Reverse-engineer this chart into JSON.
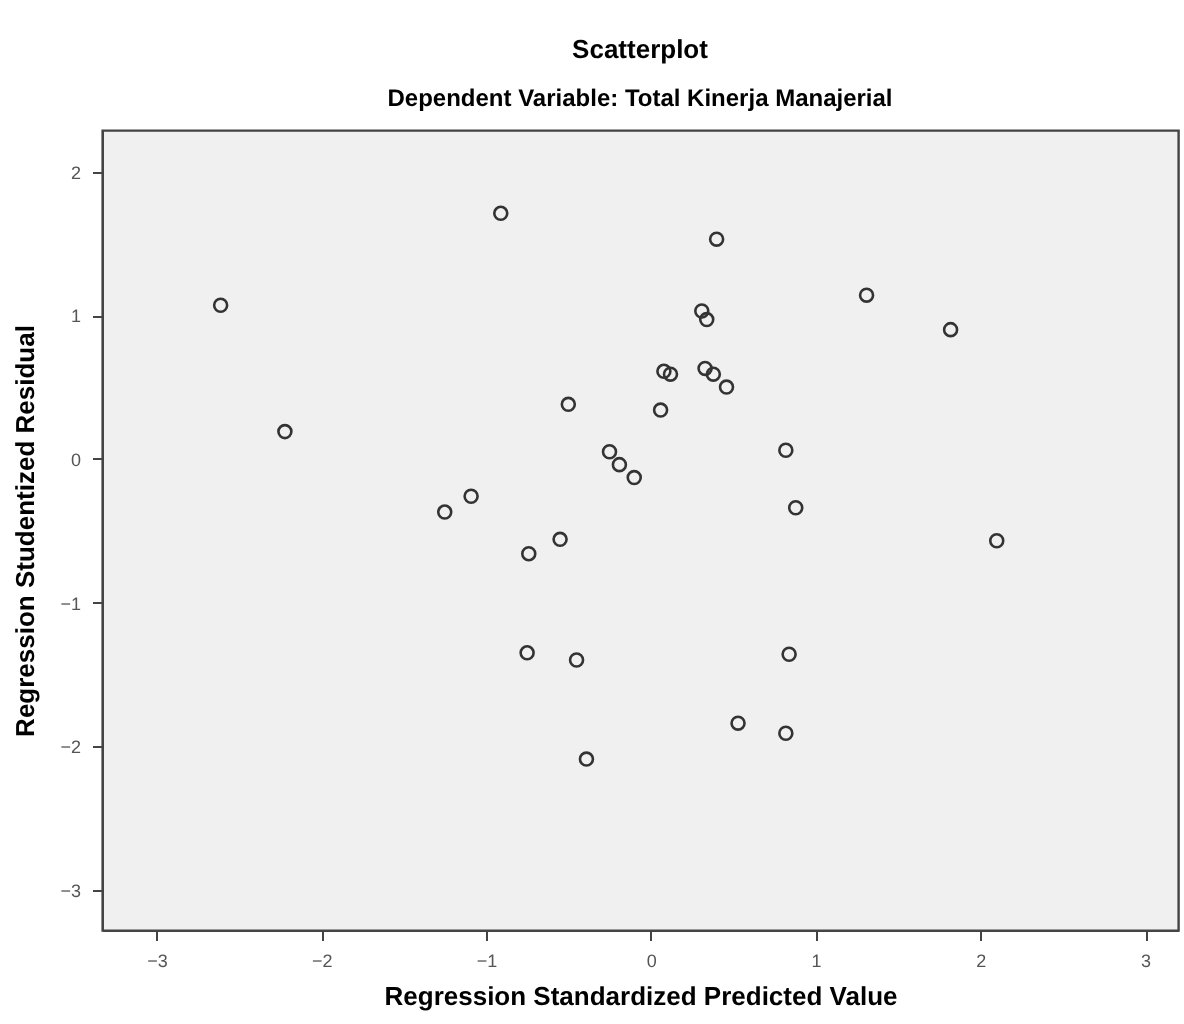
{
  "chart_data": {
    "type": "scatter",
    "title": "Scatterplot",
    "subtitle": "Dependent Variable: Total Kinerja Manajerial",
    "xlabel": "Regression Standardized Predicted Value",
    "ylabel": "Regression Studentized Residual",
    "xlim": [
      -3.33,
      3.2
    ],
    "ylim": [
      -3.28,
      2.29
    ],
    "xticks": [
      -3,
      -2,
      -1,
      0,
      1,
      2,
      3
    ],
    "yticks": [
      -3,
      -2,
      -1,
      0,
      1,
      2
    ],
    "grid": false,
    "marker": "circle",
    "series": [
      {
        "color": "#333333",
        "x": [
          -2.61,
          -2.22,
          -0.91,
          -0.5,
          -1.25,
          -1.09,
          -0.55,
          -0.74,
          -0.75,
          -0.45,
          -0.39,
          0.4,
          1.31,
          1.82,
          0.31,
          0.34,
          0.08,
          0.12,
          0.33,
          0.38,
          0.46,
          0.06,
          -0.25,
          -0.19,
          -0.1,
          0.82,
          0.88,
          2.1,
          0.84,
          0.53,
          0.82
        ],
        "values": [
          1.07,
          0.19,
          1.71,
          0.38,
          -0.37,
          -0.26,
          -0.56,
          -0.66,
          -1.35,
          -1.4,
          -2.09,
          1.53,
          1.14,
          0.9,
          1.03,
          0.97,
          0.61,
          0.59,
          0.63,
          0.59,
          0.5,
          0.34,
          0.05,
          -0.04,
          -0.13,
          0.06,
          -0.34,
          -0.57,
          -1.36,
          -1.84,
          -1.91
        ]
      }
    ]
  }
}
